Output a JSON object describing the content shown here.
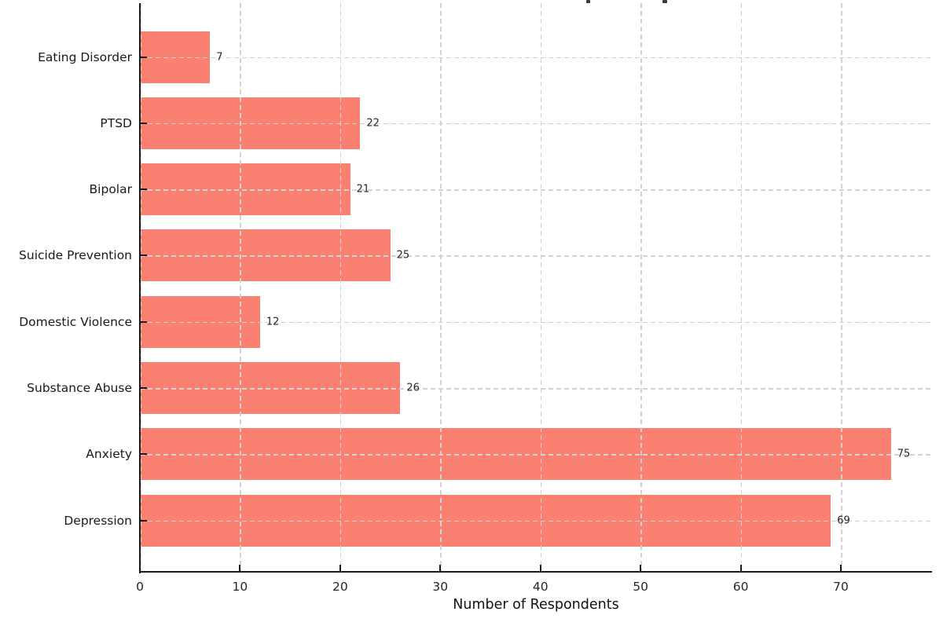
{
  "chart_data": {
    "type": "bar",
    "orientation": "horizontal",
    "categories": [
      "Eating Disorder",
      "PTSD",
      "Bipolar",
      "Suicide Prevention",
      "Domestic Violence",
      "Substance Abuse",
      "Anxiety",
      "Depression"
    ],
    "values": [
      7,
      22,
      21,
      25,
      12,
      26,
      75,
      69
    ],
    "value_labels": [
      "7",
      "22",
      "21",
      "25",
      "12",
      "26",
      "75",
      "69"
    ],
    "xlabel": "Number of Respondents",
    "xticks": [
      0,
      10,
      20,
      30,
      40,
      50,
      60,
      70
    ],
    "xtick_labels": [
      "0",
      "10",
      "20",
      "30",
      "40",
      "50",
      "60",
      "70"
    ],
    "xlim": [
      0,
      79
    ],
    "title_visible": false,
    "grid": {
      "style": "dashed",
      "color": "#d3d3d3",
      "drawn_over_bars": true
    },
    "legend": null,
    "colors": {
      "bar": "#fa8072",
      "axis": "#1a1a1a",
      "text": "#262626",
      "background": "#ffffff"
    }
  }
}
